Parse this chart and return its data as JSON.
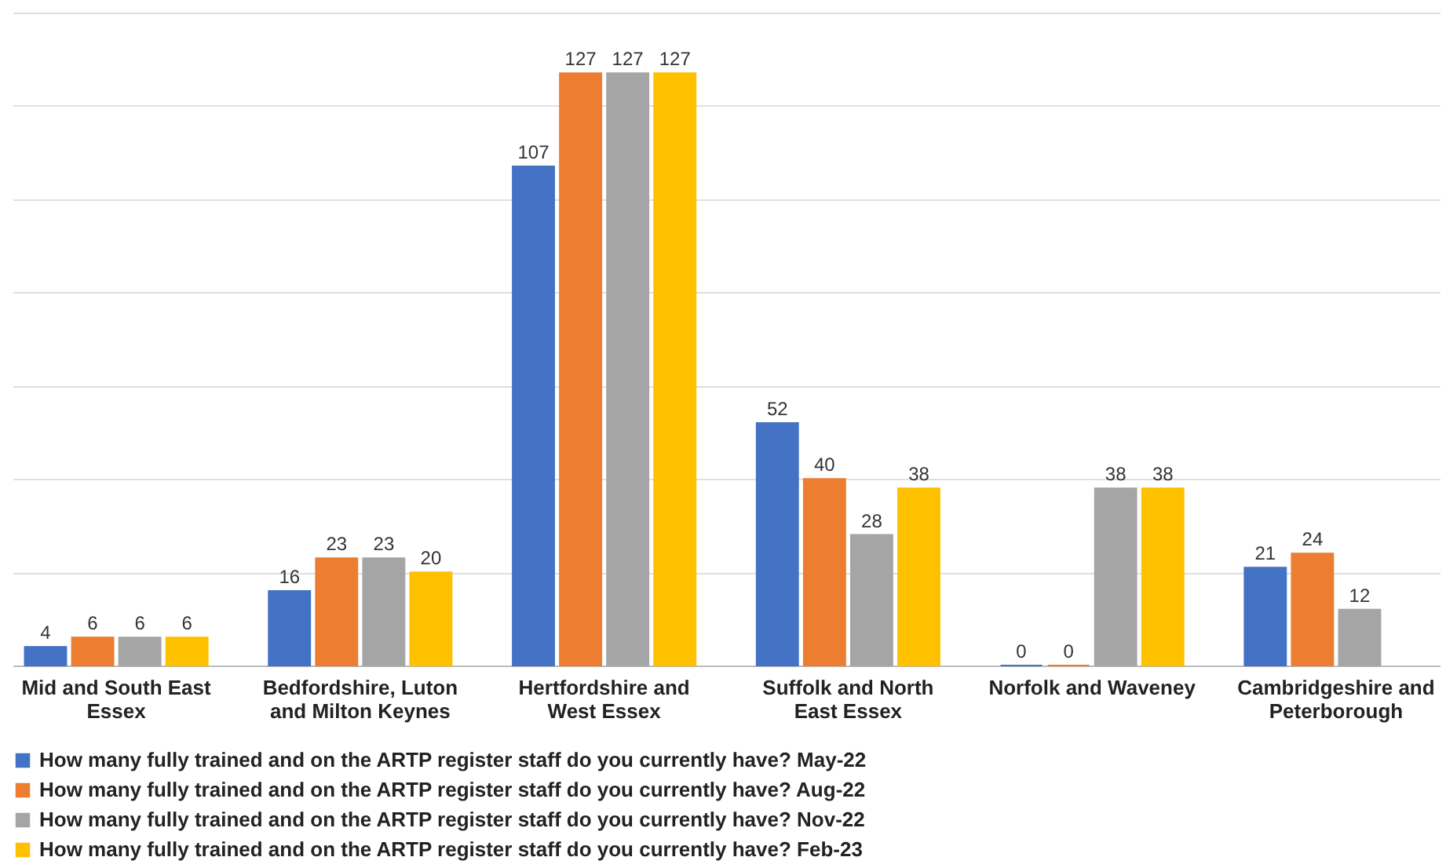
{
  "chart_data": {
    "type": "bar",
    "categories": [
      "Mid and South East Essex",
      "Bedfordshire, Luton and Milton Keynes",
      "Hertfordshire and West Essex",
      "Suffolk and North East Essex",
      "Norfolk and Waveney",
      "Cambridgeshire and Peterborough"
    ],
    "series": [
      {
        "name": "How many fully trained and on the ARTP register staff do you currently have? May-22",
        "color": "#4472c4",
        "values": [
          4,
          16,
          107,
          52,
          0,
          21
        ]
      },
      {
        "name": "How many fully trained and on the ARTP register staff do you currently have? Aug-22",
        "color": "#ed7d31",
        "values": [
          6,
          23,
          127,
          40,
          0,
          24
        ]
      },
      {
        "name": "How many fully trained and on the ARTP register staff do you currently have? Nov-22",
        "color": "#a5a5a5",
        "values": [
          6,
          23,
          127,
          28,
          38,
          12
        ]
      },
      {
        "name": "How many fully trained and on the ARTP register staff do you currently have? Feb-23",
        "color": "#ffc000",
        "values": [
          6,
          20,
          127,
          38,
          38,
          null
        ]
      }
    ],
    "ylim": [
      0,
      140
    ],
    "yticks": [
      {
        "value": 0,
        "label": null
      },
      {
        "value": 20,
        "label": null
      },
      {
        "value": 40,
        "label": null
      },
      {
        "value": 60,
        "label": null
      },
      {
        "value": 80,
        "label": null
      },
      {
        "value": 100,
        "label": null
      },
      {
        "value": 120,
        "label": null
      },
      {
        "value": 140,
        "label": null
      }
    ],
    "grid": "y",
    "tick_labels": "x",
    "legend": "bottom",
    "data_labels": true
  }
}
